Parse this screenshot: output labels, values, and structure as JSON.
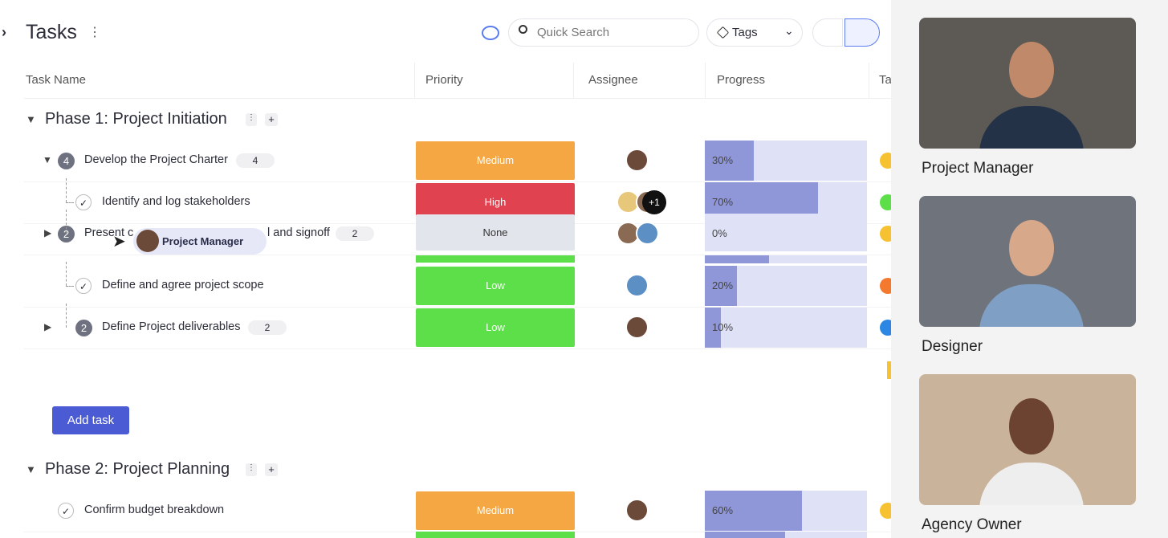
{
  "header": {
    "title": "Tasks",
    "search_placeholder": "Quick Search",
    "tags_filter": "Tags"
  },
  "columns": [
    "Task Name",
    "Priority",
    "Assignee",
    "Progress",
    "Ta"
  ],
  "phases": [
    {
      "title": "Phase 1: Project Initiation",
      "tasks": [
        {
          "name": "Develop the Project Charter",
          "count": 4,
          "subtasks": 4,
          "priority": "Medium",
          "progress": 30,
          "progress_label": "30%"
        },
        {
          "name": "Identify and log stakeholders",
          "priority": "High",
          "progress": 70,
          "progress_label": "70%",
          "extra_assignees": "+1"
        },
        {
          "name": "Present c",
          "name_rest": "l and signoff",
          "count": 2,
          "subtasks": 2,
          "priority": "None",
          "progress": 0,
          "progress_label": "0%"
        },
        {
          "name": "Define and agree project scope",
          "priority": "Low",
          "progress": 20,
          "progress_label": "20%"
        },
        {
          "name": "Define Project deliverables",
          "count": 2,
          "subtasks": 2,
          "priority": "Low",
          "progress": 10,
          "progress_label": "10%"
        }
      ]
    },
    {
      "title": "Phase 2: Project Planning",
      "tasks": [
        {
          "name": "Confirm budget breakdown",
          "priority": "Medium",
          "progress": 60,
          "progress_label": "60%"
        }
      ]
    }
  ],
  "add_task": "Add task",
  "cursor_label": "Project Manager",
  "videos": [
    {
      "label": "Project Manager"
    },
    {
      "label": "Designer"
    },
    {
      "label": "Agency Owner"
    }
  ]
}
